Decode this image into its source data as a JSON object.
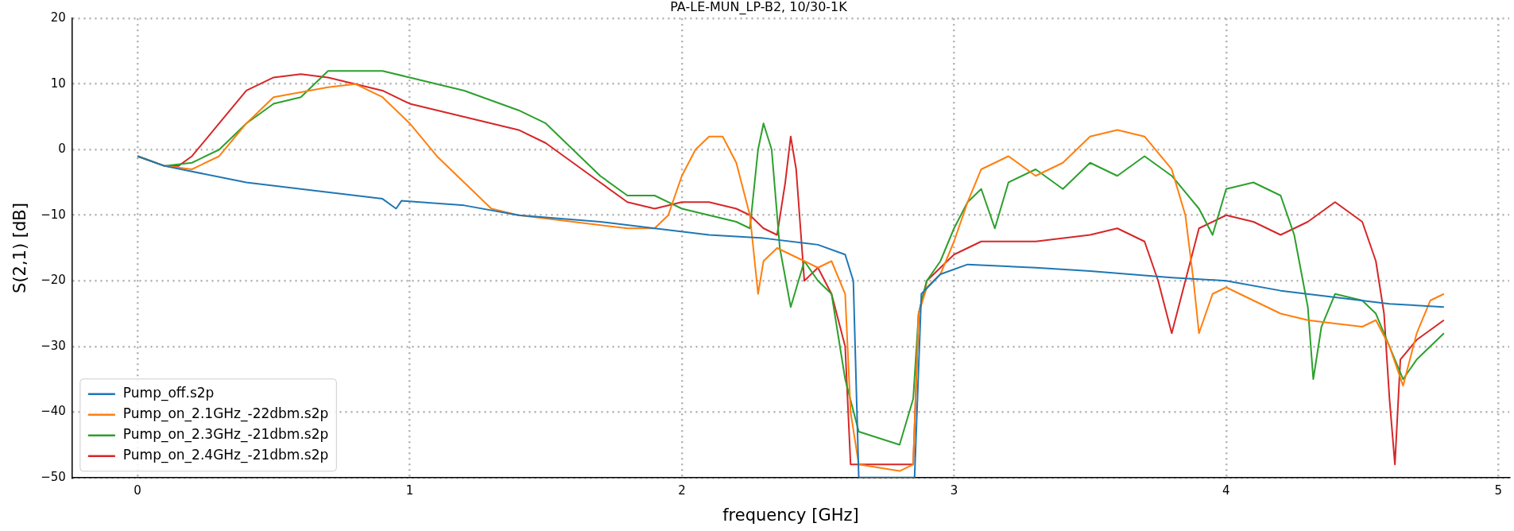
{
  "chart_data": {
    "type": "line",
    "title": "PA-LE-MUN_LP-B2, 10/30-1K",
    "xlabel": "frequency [GHz]",
    "ylabel": "S(2,1) [dB]",
    "xlim": [
      -0.24,
      5.04
    ],
    "xticks": [
      0,
      1,
      2,
      3,
      4,
      5
    ],
    "ylim": [
      -50,
      20
    ],
    "yticks": [
      -50,
      -40,
      -30,
      -20,
      -10,
      0,
      10,
      20
    ],
    "grid": true,
    "legend": "bottom left",
    "marker": "none",
    "line_style": "solid",
    "series": [
      {
        "name": "Pump_off.s2p",
        "color": "#1f77b4",
        "x": [
          0,
          0.1,
          0.4,
          0.6,
          0.9,
          0.95,
          0.97,
          1.2,
          1.4,
          1.7,
          1.9,
          2.1,
          2.3,
          2.5,
          2.6,
          2.63,
          2.65,
          2.855,
          2.88,
          2.95,
          3.05,
          3.3,
          3.5,
          3.8,
          4.0,
          4.2,
          4.4,
          4.6,
          4.8
        ],
        "values": [
          -1,
          -2.5,
          -5,
          -6,
          -7.5,
          -9,
          -7.8,
          -8.5,
          -10,
          -11,
          -12,
          -13,
          -13.5,
          -14.5,
          -16,
          -20,
          -50,
          -50,
          -22,
          -19,
          -17.5,
          -18,
          -18.5,
          -19.5,
          -20,
          -21.5,
          -22.5,
          -23.5,
          -24
        ]
      },
      {
        "name": "Pump_on_2.1GHz_-22dbm.s2p",
        "color": "#ff7f0e",
        "x": [
          0,
          0.1,
          0.2,
          0.3,
          0.4,
          0.5,
          0.7,
          0.8,
          0.9,
          1.0,
          1.1,
          1.2,
          1.3,
          1.4,
          1.6,
          1.8,
          1.9,
          1.95,
          2.0,
          2.05,
          2.1,
          2.15,
          2.2,
          2.25,
          2.28,
          2.3,
          2.35,
          2.4,
          2.45,
          2.5,
          2.55,
          2.6,
          2.62,
          2.65,
          2.8,
          2.85,
          2.87,
          2.9,
          2.95,
          3.0,
          3.05,
          3.1,
          3.2,
          3.3,
          3.4,
          3.5,
          3.6,
          3.7,
          3.8,
          3.85,
          3.88,
          3.9,
          3.95,
          4.0,
          4.1,
          4.2,
          4.3,
          4.4,
          4.5,
          4.55,
          4.6,
          4.65,
          4.7,
          4.75,
          4.8
        ],
        "values": [
          -1,
          -2.5,
          -3,
          -1,
          4,
          8,
          9.5,
          10,
          8,
          4,
          -1,
          -5,
          -9,
          -10,
          -11,
          -12,
          -12,
          -10,
          -4,
          0,
          2,
          2,
          -2,
          -10,
          -22,
          -17,
          -15,
          -16,
          -17,
          -18,
          -17,
          -22,
          -40,
          -48,
          -49,
          -48,
          -25,
          -21,
          -19,
          -14,
          -8,
          -3,
          -1,
          -4,
          -2,
          2,
          3,
          2,
          -3,
          -10,
          -20,
          -28,
          -22,
          -21,
          -23,
          -25,
          -26,
          -26.5,
          -27,
          -26,
          -30,
          -36,
          -28,
          -23,
          -22
        ]
      },
      {
        "name": "Pump_on_2.3GHz_-21dbm.s2p",
        "color": "#2ca02c",
        "x": [
          0,
          0.1,
          0.2,
          0.3,
          0.4,
          0.5,
          0.6,
          0.7,
          0.9,
          1.0,
          1.2,
          1.4,
          1.5,
          1.6,
          1.7,
          1.8,
          1.9,
          2.0,
          2.1,
          2.2,
          2.25,
          2.28,
          2.3,
          2.33,
          2.36,
          2.4,
          2.45,
          2.5,
          2.55,
          2.6,
          2.65,
          2.8,
          2.85,
          2.87,
          2.9,
          2.95,
          3.0,
          3.05,
          3.1,
          3.15,
          3.2,
          3.3,
          3.4,
          3.5,
          3.6,
          3.7,
          3.8,
          3.9,
          3.95,
          4.0,
          4.1,
          4.2,
          4.25,
          4.3,
          4.32,
          4.35,
          4.4,
          4.5,
          4.55,
          4.6,
          4.65,
          4.7,
          4.8
        ],
        "values": [
          -1,
          -2.5,
          -2,
          0,
          4,
          7,
          8,
          12,
          12,
          11,
          9,
          6,
          4,
          0,
          -4,
          -7,
          -7,
          -9,
          -10,
          -11,
          -12,
          0,
          4,
          0,
          -15,
          -24,
          -17,
          -20,
          -22,
          -35,
          -43,
          -45,
          -38,
          -25,
          -20,
          -17,
          -12,
          -8,
          -6,
          -12,
          -5,
          -3,
          -6,
          -2,
          -4,
          -1,
          -4,
          -9,
          -13,
          -6,
          -5,
          -7,
          -13,
          -24,
          -35,
          -27,
          -22,
          -23,
          -25,
          -30,
          -35,
          -32,
          -28
        ]
      },
      {
        "name": "Pump_on_2.4GHz_-21dbm.s2p",
        "color": "#d62728",
        "x": [
          0,
          0.1,
          0.15,
          0.2,
          0.3,
          0.4,
          0.5,
          0.6,
          0.7,
          0.8,
          0.9,
          1.0,
          1.2,
          1.4,
          1.5,
          1.6,
          1.7,
          1.8,
          1.9,
          2.0,
          2.1,
          2.2,
          2.25,
          2.3,
          2.35,
          2.38,
          2.4,
          2.42,
          2.45,
          2.5,
          2.55,
          2.6,
          2.62,
          2.85,
          2.87,
          2.9,
          2.95,
          3.0,
          3.1,
          3.3,
          3.5,
          3.6,
          3.7,
          3.75,
          3.8,
          3.85,
          3.9,
          4.0,
          4.1,
          4.2,
          4.3,
          4.4,
          4.5,
          4.55,
          4.58,
          4.6,
          4.62,
          4.64,
          4.7,
          4.8
        ],
        "values": [
          -1,
          -2.5,
          -2.5,
          -1,
          4,
          9,
          11,
          11.5,
          11,
          10,
          9,
          7,
          5,
          3,
          1,
          -2,
          -5,
          -8,
          -9,
          -8,
          -8,
          -9,
          -10,
          -12,
          -13,
          -5,
          2,
          -3,
          -20,
          -18,
          -22,
          -30,
          -48,
          -48,
          -25,
          -20,
          -18,
          -16,
          -14,
          -14,
          -13,
          -12,
          -14,
          -20,
          -28,
          -20,
          -12,
          -10,
          -11,
          -13,
          -11,
          -8,
          -11,
          -17,
          -25,
          -38,
          -48,
          -32,
          -29,
          -26
        ]
      }
    ]
  }
}
